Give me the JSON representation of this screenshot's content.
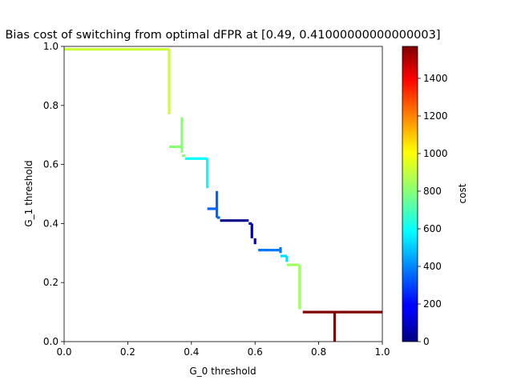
{
  "chart_data": {
    "type": "line",
    "title": "Bias cost of switching from optimal dFPR at [0.49, 0.41000000000000003]",
    "xlabel": "G_0 threshold",
    "ylabel": "G_1 threshold",
    "xlim": [
      0,
      1
    ],
    "ylim": [
      0,
      1
    ],
    "xticks": [
      0.0,
      0.2,
      0.4,
      0.6,
      0.8,
      1.0
    ],
    "yticks": [
      0.0,
      0.2,
      0.4,
      0.6,
      0.8,
      1.0
    ],
    "xtick_labels": [
      "0.0",
      "0.2",
      "0.4",
      "0.6",
      "0.8",
      "1.0"
    ],
    "ytick_labels": [
      "0.0",
      "0.2",
      "0.4",
      "0.6",
      "0.8",
      "1.0"
    ],
    "grid": false,
    "colorbar": {
      "label": "cost",
      "colormap": "jet",
      "range": [
        0,
        1570
      ],
      "ticks": [
        0,
        200,
        400,
        600,
        800,
        1000,
        1200,
        1400
      ],
      "tick_labels": [
        "0",
        "200",
        "400",
        "600",
        "800",
        "1000",
        "1200",
        "1400"
      ]
    },
    "segments": [
      {
        "x": [
          0.0,
          0.33
        ],
        "y": [
          0.99,
          0.99
        ],
        "cost": 900
      },
      {
        "x": [
          0.33,
          0.33
        ],
        "y": [
          0.99,
          0.77
        ],
        "cost": 900
      },
      {
        "x": [
          0.37,
          0.37
        ],
        "y": [
          0.76,
          0.64
        ],
        "cost": 800
      },
      {
        "x": [
          0.33,
          0.37
        ],
        "y": [
          0.66,
          0.66
        ],
        "cost": 800
      },
      {
        "x": [
          0.37,
          0.38
        ],
        "y": [
          0.63,
          0.63
        ],
        "cost": 800
      },
      {
        "x": [
          0.38,
          0.45
        ],
        "y": [
          0.62,
          0.62
        ],
        "cost": 590
      },
      {
        "x": [
          0.45,
          0.45
        ],
        "y": [
          0.62,
          0.52
        ],
        "cost": 590
      },
      {
        "x": [
          0.45,
          0.48
        ],
        "y": [
          0.45,
          0.45
        ],
        "cost": 350
      },
      {
        "x": [
          0.48,
          0.48
        ],
        "y": [
          0.51,
          0.42
        ],
        "cost": 350
      },
      {
        "x": [
          0.48,
          0.49
        ],
        "y": [
          0.42,
          0.42
        ],
        "cost": 350
      },
      {
        "x": [
          0.49,
          0.58
        ],
        "y": [
          0.41,
          0.41
        ],
        "cost": 20
      },
      {
        "x": [
          0.58,
          0.59
        ],
        "y": [
          0.4,
          0.4
        ],
        "cost": 80
      },
      {
        "x": [
          0.59,
          0.59
        ],
        "y": [
          0.4,
          0.35
        ],
        "cost": 80
      },
      {
        "x": [
          0.6,
          0.6
        ],
        "y": [
          0.35,
          0.33
        ],
        "cost": 120
      },
      {
        "x": [
          0.61,
          0.68
        ],
        "y": [
          0.31,
          0.31
        ],
        "cost": 380
      },
      {
        "x": [
          0.68,
          0.68
        ],
        "y": [
          0.32,
          0.3
        ],
        "cost": 380
      },
      {
        "x": [
          0.68,
          0.7
        ],
        "y": [
          0.29,
          0.29
        ],
        "cost": 540
      },
      {
        "x": [
          0.7,
          0.7
        ],
        "y": [
          0.29,
          0.27
        ],
        "cost": 540
      },
      {
        "x": [
          0.7,
          0.74
        ],
        "y": [
          0.26,
          0.26
        ],
        "cost": 830
      },
      {
        "x": [
          0.74,
          0.74
        ],
        "y": [
          0.26,
          0.11
        ],
        "cost": 830
      },
      {
        "x": [
          0.75,
          1.0
        ],
        "y": [
          0.1,
          0.1
        ],
        "cost": 1570
      },
      {
        "x": [
          0.85,
          0.85
        ],
        "y": [
          0.1,
          0.0
        ],
        "cost": 1570
      }
    ]
  }
}
